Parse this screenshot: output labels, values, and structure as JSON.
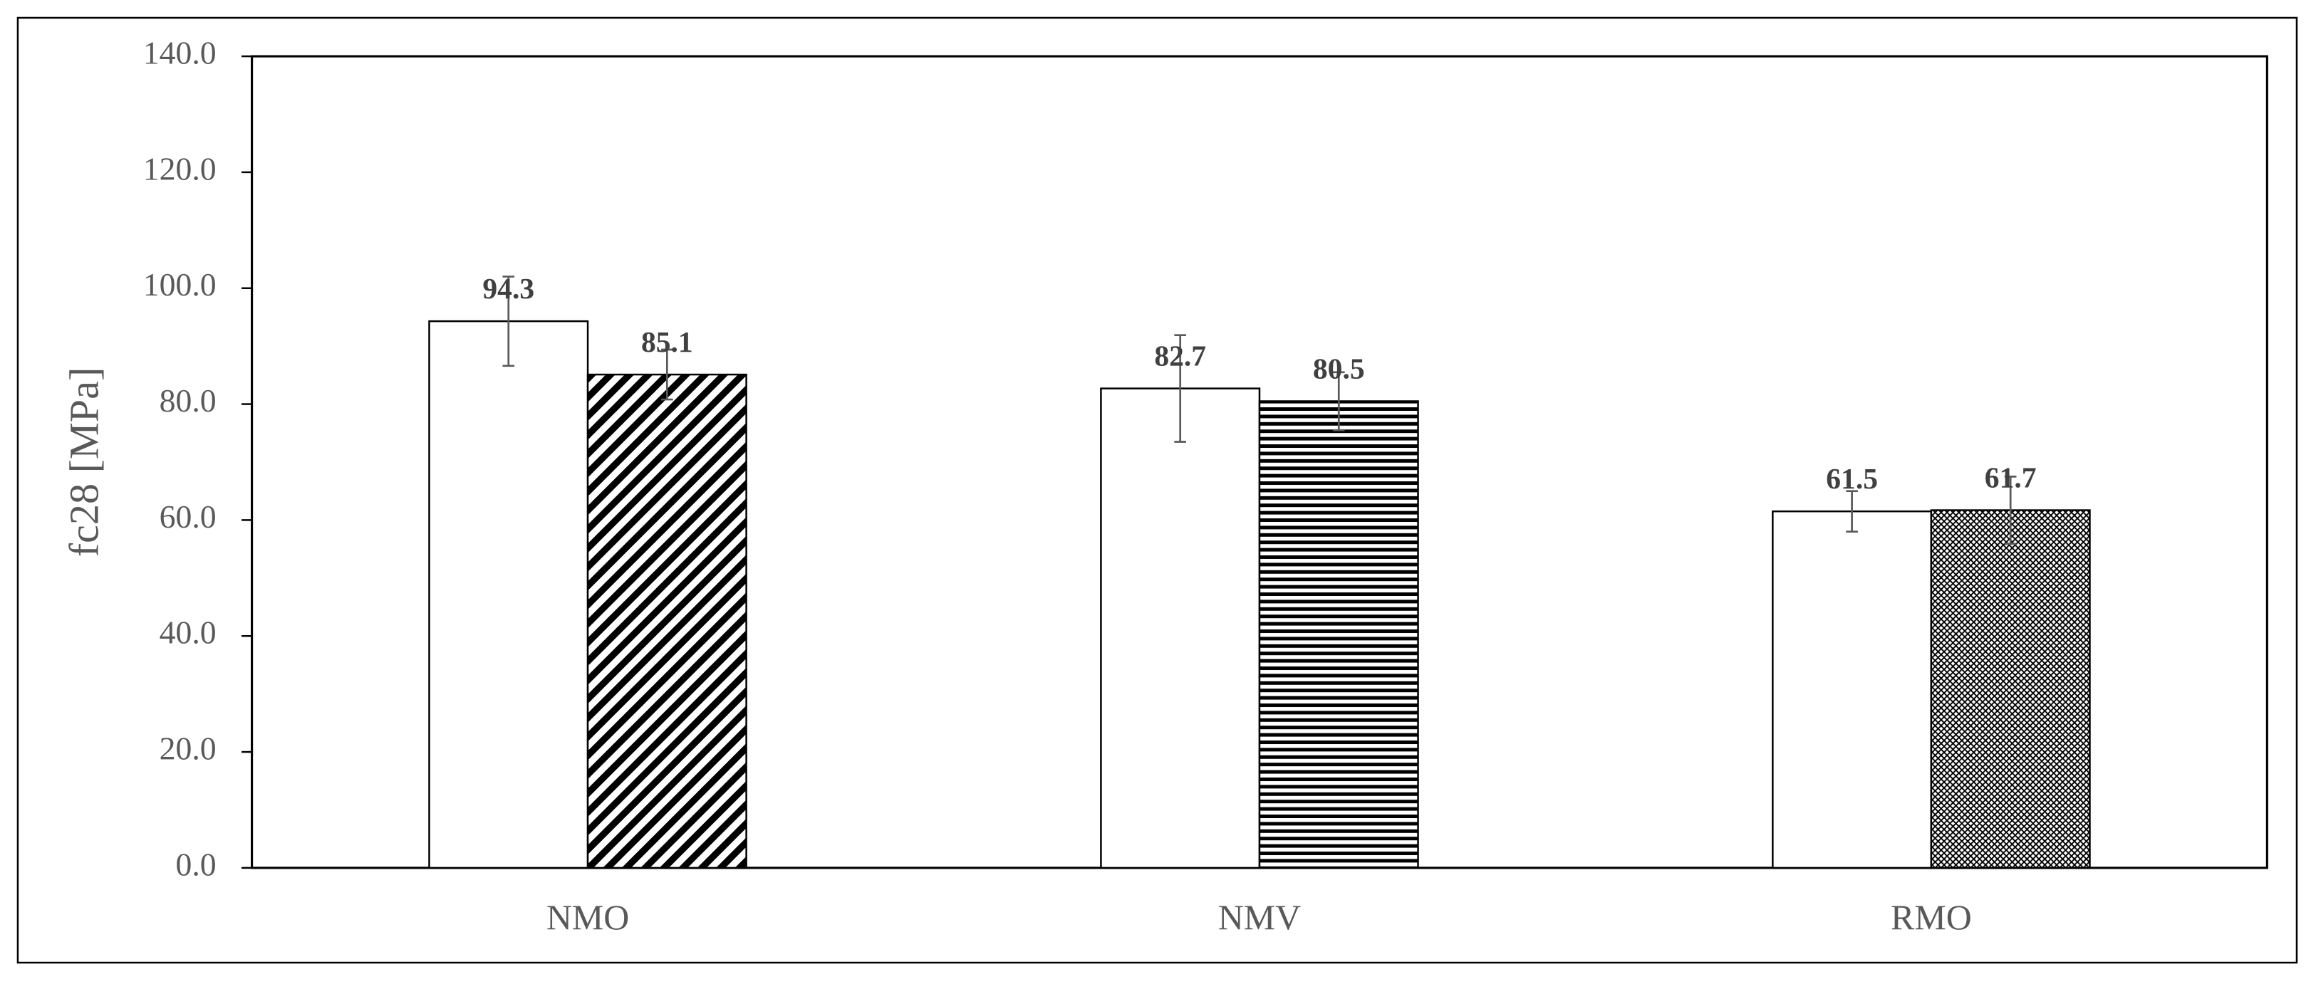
{
  "chart_data": {
    "type": "bar",
    "y_label": "fc28 [MPa]",
    "categories": [
      "NMO",
      "NMV",
      "RMO"
    ],
    "series": [
      {
        "color": "#ffffff",
        "values": [
          94.3,
          82.7,
          61.5
        ],
        "errors": [
          7.7,
          9.2,
          3.5
        ]
      },
      {
        "color": "#000000",
        "values": [
          85.1,
          80.5,
          61.7
        ],
        "errors": [
          4.3,
          5.0,
          5.8
        ],
        "hatches": [
          "diagonal",
          "horizontal",
          "cross"
        ]
      }
    ],
    "ylim": [
      0,
      140
    ],
    "yticks": [
      {
        "value": 0,
        "label": "0.0"
      },
      {
        "value": 20,
        "label": "20.0"
      },
      {
        "value": 40,
        "label": "40.0"
      },
      {
        "value": 60,
        "label": "60.0"
      },
      {
        "value": 80,
        "label": "80.0"
      },
      {
        "value": 100,
        "label": "100.0"
      },
      {
        "value": 120,
        "label": "120.0"
      },
      {
        "value": 140,
        "label": "140.0"
      }
    ],
    "grid": false
  }
}
